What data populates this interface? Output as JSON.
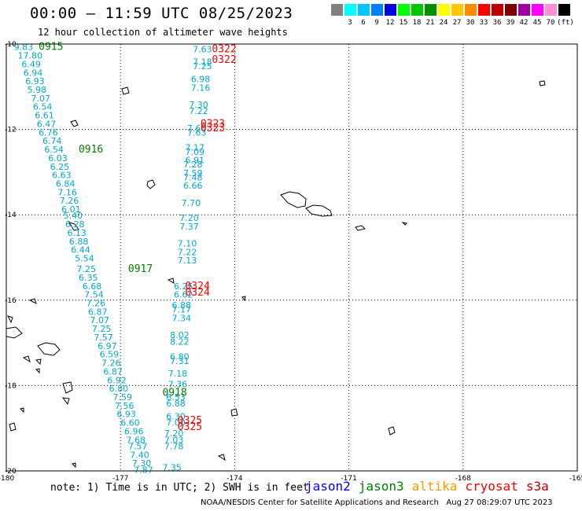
{
  "header": {
    "title": "00:00 – 11:59 UTC 08/25/2023",
    "subtitle": "12 hour collection of altimeter wave heights"
  },
  "legend": {
    "unit": "(ft)",
    "swatches": [
      {
        "label": "",
        "color": "#808080"
      },
      {
        "label": "3",
        "color": "#00ffff"
      },
      {
        "label": "6",
        "color": "#00c8ff"
      },
      {
        "label": "9",
        "color": "#0080ff"
      },
      {
        "label": "12",
        "color": "#0000e0"
      },
      {
        "label": "15",
        "color": "#00ff00"
      },
      {
        "label": "18",
        "color": "#00c800"
      },
      {
        "label": "21",
        "color": "#009000"
      },
      {
        "label": "24",
        "color": "#ffff00"
      },
      {
        "label": "27",
        "color": "#ffc800"
      },
      {
        "label": "30",
        "color": "#ff8c00"
      },
      {
        "label": "33",
        "color": "#ff0000"
      },
      {
        "label": "36",
        "color": "#c00000"
      },
      {
        "label": "39",
        "color": "#800000"
      },
      {
        "label": "42",
        "color": "#a000a0"
      },
      {
        "label": "45",
        "color": "#ff00ff"
      },
      {
        "label": "70",
        "color": "#ff90d8"
      },
      {
        "label": "",
        "color": "#000000"
      }
    ]
  },
  "axes": {
    "x_ticks": [
      "-180",
      "-177",
      "-174",
      "-171",
      "-168",
      "-165"
    ],
    "y_ticks": [
      "-10",
      "-12",
      "-14",
      "-16",
      "-18",
      "-20"
    ]
  },
  "tracks": {
    "colors": {
      "jason3": "#008000",
      "cryosat": "#ff0000",
      "data": "#00a8d0"
    },
    "passes": [
      {
        "label": "0915",
        "sat": "jason3",
        "lon": -179.15,
        "lat": -10.05
      },
      {
        "label": "0916",
        "sat": "jason3",
        "lon": -178.1,
        "lat": -12.45
      },
      {
        "label": "0917",
        "sat": "jason3",
        "lon": -176.8,
        "lat": -15.25
      },
      {
        "label": "0918",
        "sat": "jason3",
        "lon": -175.9,
        "lat": -18.15
      },
      {
        "label": "0322",
        "sat": "cryosat",
        "lon": -174.6,
        "lat": -10.1
      },
      {
        "label": "0322",
        "sat": "cryosat",
        "lon": -174.6,
        "lat": -10.35
      },
      {
        "label": "0323",
        "sat": "cryosat",
        "lon": -174.9,
        "lat": -11.85
      },
      {
        "label": "0323",
        "sat": "cryosat",
        "lon": -174.9,
        "lat": -11.95
      },
      {
        "label": "0324",
        "sat": "cryosat",
        "lon": -175.3,
        "lat": -15.65
      },
      {
        "label": "0324",
        "sat": "cryosat",
        "lon": -175.3,
        "lat": -15.8
      },
      {
        "label": "0325",
        "sat": "cryosat",
        "lon": -175.5,
        "lat": -18.8
      },
      {
        "label": "0325",
        "sat": "cryosat",
        "lon": -175.5,
        "lat": -18.95
      }
    ],
    "track1": [
      {
        "v": "9.83",
        "lon": -179.8,
        "lat": -10.05
      },
      {
        "v": "17.80",
        "lon": -179.7,
        "lat": -10.25
      },
      {
        "v": "6.49",
        "lon": -179.6,
        "lat": -10.45
      },
      {
        "v": "6.94",
        "lon": -179.55,
        "lat": -10.65
      },
      {
        "v": "6.93",
        "lon": -179.5,
        "lat": -10.85
      },
      {
        "v": "5.98",
        "lon": -179.45,
        "lat": -11.05
      },
      {
        "v": "7.07",
        "lon": -179.35,
        "lat": -11.25
      },
      {
        "v": "6.54",
        "lon": -179.3,
        "lat": -11.45
      },
      {
        "v": "6.61",
        "lon": -179.25,
        "lat": -11.65
      },
      {
        "v": "6.47",
        "lon": -179.2,
        "lat": -11.85
      },
      {
        "v": "6.76",
        "lon": -179.15,
        "lat": -12.05
      },
      {
        "v": "6.74",
        "lon": -179.05,
        "lat": -12.25
      },
      {
        "v": "6.54",
        "lon": -179.0,
        "lat": -12.45
      },
      {
        "v": "6.03",
        "lon": -178.9,
        "lat": -12.65
      },
      {
        "v": "6.25",
        "lon": -178.85,
        "lat": -12.85
      },
      {
        "v": "6.63",
        "lon": -178.8,
        "lat": -13.05
      },
      {
        "v": "6.84",
        "lon": -178.7,
        "lat": -13.25
      },
      {
        "v": "7.16",
        "lon": -178.65,
        "lat": -13.45
      },
      {
        "v": "7.26",
        "lon": -178.6,
        "lat": -13.65
      },
      {
        "v": "6.01",
        "lon": -178.55,
        "lat": -13.85
      },
      {
        "v": "5.40",
        "lon": -178.5,
        "lat": -14.0
      },
      {
        "v": "6.28",
        "lon": -178.45,
        "lat": -14.2
      },
      {
        "v": "6.13",
        "lon": -178.4,
        "lat": -14.4
      },
      {
        "v": "6.88",
        "lon": -178.35,
        "lat": -14.6
      },
      {
        "v": "6.44",
        "lon": -178.3,
        "lat": -14.8
      },
      {
        "v": "5.54",
        "lon": -178.2,
        "lat": -15.0
      },
      {
        "v": "7.25",
        "lon": -178.15,
        "lat": -15.25
      },
      {
        "v": "6.35",
        "lon": -178.1,
        "lat": -15.45
      },
      {
        "v": "6.68",
        "lon": -178.0,
        "lat": -15.65
      },
      {
        "v": "7.54",
        "lon": -177.95,
        "lat": -15.85
      },
      {
        "v": "7.26",
        "lon": -177.9,
        "lat": -16.05
      },
      {
        "v": "6.87",
        "lon": -177.85,
        "lat": -16.25
      },
      {
        "v": "7.07",
        "lon": -177.8,
        "lat": -16.45
      },
      {
        "v": "7.25",
        "lon": -177.75,
        "lat": -16.65
      },
      {
        "v": "7.57",
        "lon": -177.7,
        "lat": -16.85
      },
      {
        "v": "6.97",
        "lon": -177.6,
        "lat": -17.05
      },
      {
        "v": "6.59",
        "lon": -177.55,
        "lat": -17.25
      },
      {
        "v": "7.26",
        "lon": -177.5,
        "lat": -17.45
      },
      {
        "v": "6.87",
        "lon": -177.45,
        "lat": -17.65
      },
      {
        "v": "6.92",
        "lon": -177.35,
        "lat": -17.85
      },
      {
        "v": "6.80",
        "lon": -177.3,
        "lat": -18.05
      },
      {
        "v": "7.59",
        "lon": -177.2,
        "lat": -18.25
      },
      {
        "v": "7.56",
        "lon": -177.15,
        "lat": -18.45
      },
      {
        "v": "6.93",
        "lon": -177.1,
        "lat": -18.65
      },
      {
        "v": "6.60",
        "lon": -177.0,
        "lat": -18.85
      },
      {
        "v": "6.96",
        "lon": -176.9,
        "lat": -19.05
      },
      {
        "v": "7.68",
        "lon": -176.85,
        "lat": -19.25
      },
      {
        "v": "7.57",
        "lon": -176.8,
        "lat": -19.4
      },
      {
        "v": "7.40",
        "lon": -176.75,
        "lat": -19.6
      },
      {
        "v": "7.30",
        "lon": -176.7,
        "lat": -19.8
      },
      {
        "v": "7.87",
        "lon": -176.65,
        "lat": -19.95
      }
    ],
    "track2": [
      {
        "v": "7.63",
        "lon": -175.1,
        "lat": -10.1
      },
      {
        "v": "7.18",
        "lon": -175.1,
        "lat": -10.4
      },
      {
        "v": "7.25",
        "lon": -175.1,
        "lat": -10.5
      },
      {
        "v": "6.98",
        "lon": -175.15,
        "lat": -10.8
      },
      {
        "v": "7.16",
        "lon": -175.15,
        "lat": -11.0
      },
      {
        "v": "7.30",
        "lon": -175.2,
        "lat": -11.4
      },
      {
        "v": "7.22",
        "lon": -175.2,
        "lat": -11.55
      },
      {
        "v": "7.66",
        "lon": -175.25,
        "lat": -11.95
      },
      {
        "v": "7.63",
        "lon": -175.25,
        "lat": -12.05
      },
      {
        "v": "7.17",
        "lon": -175.3,
        "lat": -12.4
      },
      {
        "v": "7.09",
        "lon": -175.3,
        "lat": -12.5
      },
      {
        "v": "6.91",
        "lon": -175.3,
        "lat": -12.7
      },
      {
        "v": "7.28",
        "lon": -175.35,
        "lat": -12.8
      },
      {
        "v": "7.59",
        "lon": -175.35,
        "lat": -13.0
      },
      {
        "v": "7.48",
        "lon": -175.35,
        "lat": -13.1
      },
      {
        "v": "6.66",
        "lon": -175.35,
        "lat": -13.3
      },
      {
        "v": "7.70",
        "lon": -175.4,
        "lat": -13.7
      },
      {
        "v": "7.20",
        "lon": -175.45,
        "lat": -14.05
      },
      {
        "v": "7.37",
        "lon": -175.45,
        "lat": -14.25
      },
      {
        "v": "7.10",
        "lon": -175.5,
        "lat": -14.65
      },
      {
        "v": "7.22",
        "lon": -175.5,
        "lat": -14.85
      },
      {
        "v": "7.13",
        "lon": -175.5,
        "lat": -15.05
      },
      {
        "v": "6.25",
        "lon": -175.6,
        "lat": -15.65
      },
      {
        "v": "6.62",
        "lon": -175.6,
        "lat": -15.85
      },
      {
        "v": "6.88",
        "lon": -175.65,
        "lat": -16.1
      },
      {
        "v": "7.17",
        "lon": -175.65,
        "lat": -16.2
      },
      {
        "v": "7.34",
        "lon": -175.65,
        "lat": -16.4
      },
      {
        "v": "8.02",
        "lon": -175.7,
        "lat": -16.8
      },
      {
        "v": "8.22",
        "lon": -175.7,
        "lat": -16.95
      },
      {
        "v": "6.80",
        "lon": -175.7,
        "lat": -17.3
      },
      {
        "v": "7.31",
        "lon": -175.7,
        "lat": -17.4
      },
      {
        "v": "7.18",
        "lon": -175.75,
        "lat": -17.7
      },
      {
        "v": "7.36",
        "lon": -175.75,
        "lat": -17.95
      },
      {
        "v": "6.53",
        "lon": -175.8,
        "lat": -18.25
      },
      {
        "v": "6.88",
        "lon": -175.8,
        "lat": -18.4
      },
      {
        "v": "6.30",
        "lon": -175.8,
        "lat": -18.7
      },
      {
        "v": "7.00",
        "lon": -175.8,
        "lat": -18.85
      },
      {
        "v": "7.20",
        "lon": -175.85,
        "lat": -19.1
      },
      {
        "v": "7.03",
        "lon": -175.85,
        "lat": -19.25
      },
      {
        "v": "7.78",
        "lon": -175.85,
        "lat": -19.4
      },
      {
        "v": "7.35",
        "lon": -175.9,
        "lat": -19.9
      }
    ]
  },
  "footer": {
    "note": "note: 1) Time is in UTC; 2) SWH is in feet",
    "sats": [
      {
        "name": "jason2",
        "color": "#0000ff"
      },
      {
        "name": "jason3",
        "color": "#008000"
      },
      {
        "name": "altika",
        "color": "#ff9900"
      },
      {
        "name": "cryosat",
        "color": "#ff0000"
      },
      {
        "name": "s3a",
        "color": "#c00000"
      }
    ],
    "credit": "NOAA/NESDIS Center for Satellite Applications and Research   Aug 27 08:29:07 UTC 2023"
  }
}
